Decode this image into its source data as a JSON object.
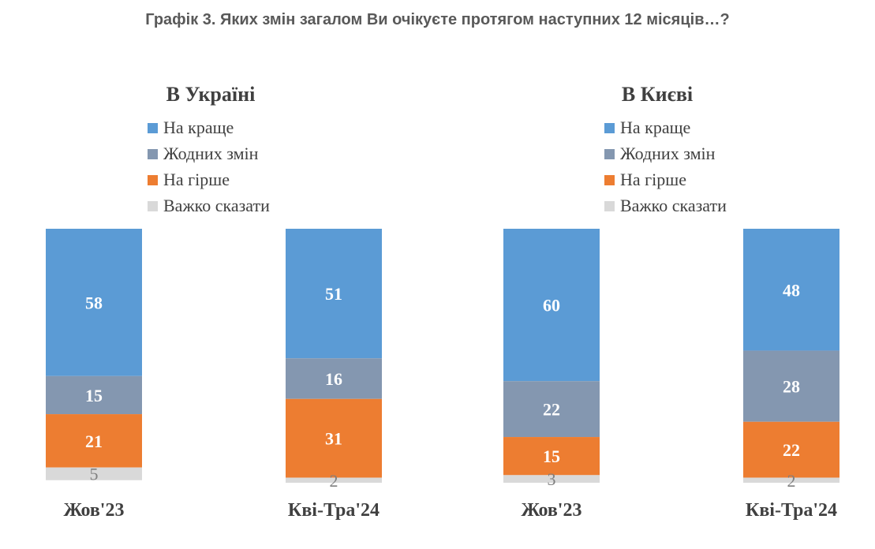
{
  "title": "Графік 3. Яких змін загалом Ви очікуєте протягом наступних 12 місяців…?",
  "chart_data": [
    {
      "type": "bar",
      "stacked": true,
      "title": "В Україні",
      "categories": [
        "Жов'23",
        "Кві-Тра'24"
      ],
      "series": [
        {
          "name": "На краще",
          "color": "#5b9bd5",
          "values": [
            58,
            51
          ]
        },
        {
          "name": "Жодних змін",
          "color": "#8497b0",
          "values": [
            15,
            16
          ]
        },
        {
          "name": "На гірше",
          "color": "#ed7d31",
          "values": [
            21,
            31
          ]
        },
        {
          "name": "Важко сказати",
          "color": "#d9d9d9",
          "values": [
            5,
            2
          ]
        }
      ],
      "ylim": [
        0,
        100
      ],
      "legend_position": "top"
    },
    {
      "type": "bar",
      "stacked": true,
      "title": "В Києві",
      "categories": [
        "Жов'23",
        "Кві-Тра'24"
      ],
      "series": [
        {
          "name": "На краще",
          "color": "#5b9bd5",
          "values": [
            60,
            48
          ]
        },
        {
          "name": "Жодних змін",
          "color": "#8497b0",
          "values": [
            22,
            28
          ]
        },
        {
          "name": "На гірше",
          "color": "#ed7d31",
          "values": [
            15,
            22
          ]
        },
        {
          "name": "Важко сказати",
          "color": "#d9d9d9",
          "values": [
            3,
            2
          ]
        }
      ],
      "ylim": [
        0,
        100
      ],
      "legend_position": "top"
    }
  ]
}
